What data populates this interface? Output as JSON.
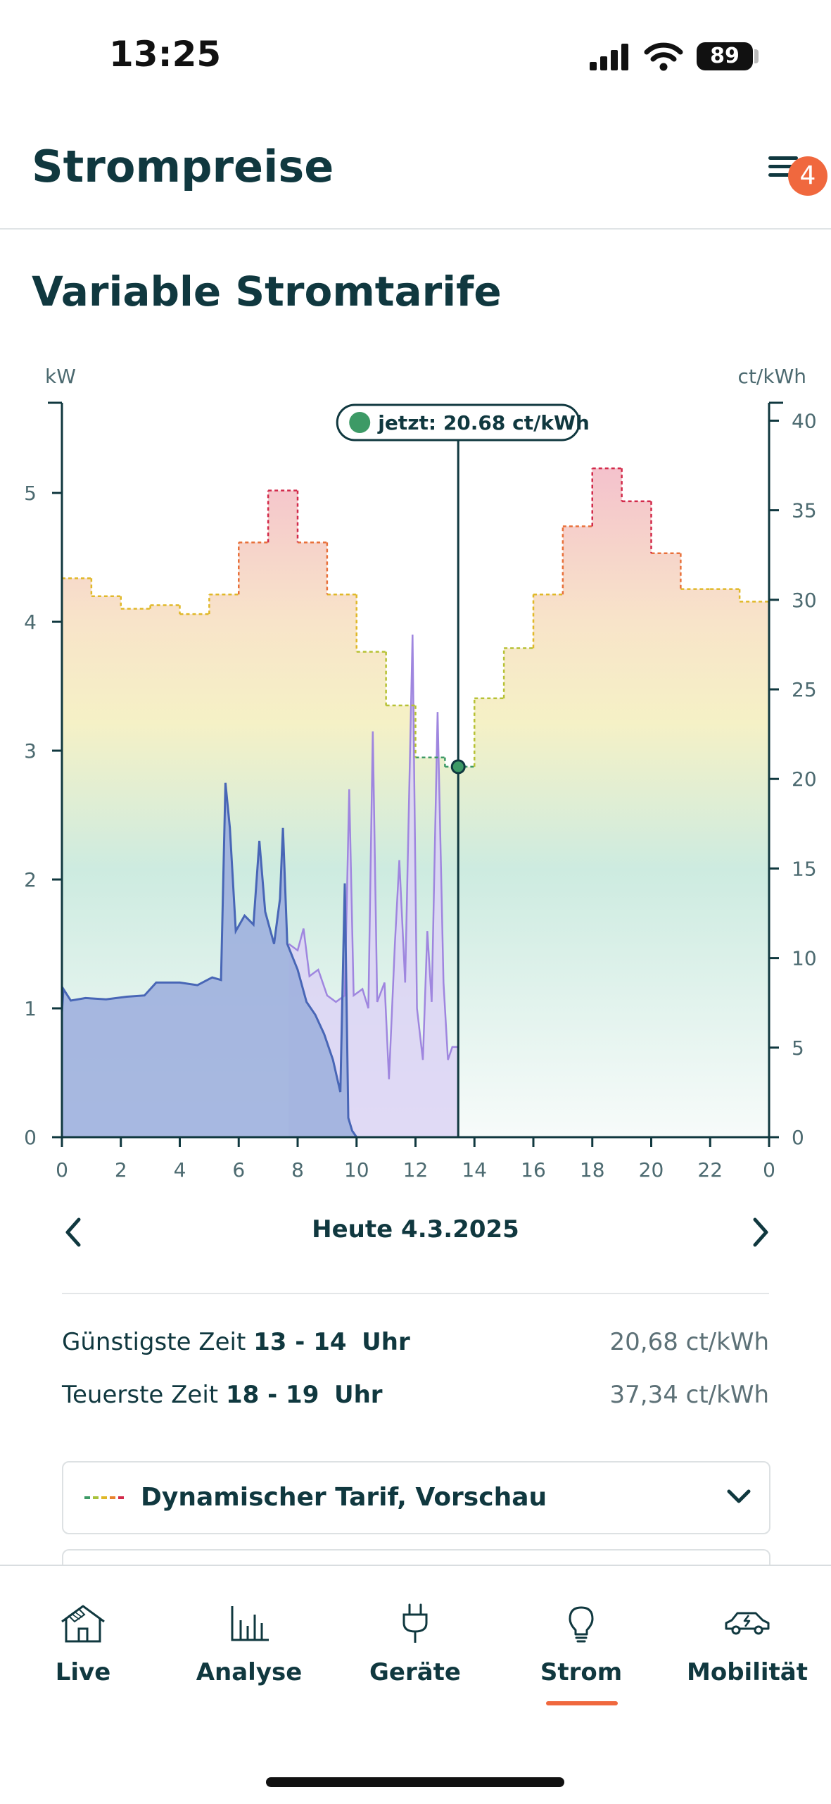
{
  "status_bar": {
    "time": "13:25",
    "battery": "89"
  },
  "header": {
    "title": "Strompreise",
    "menu_badge": "4"
  },
  "section": {
    "title": "Variable Stromtarife"
  },
  "chart_data": {
    "type": "area",
    "left_axis_label": "kW",
    "right_axis_label": "ct/kWh",
    "left_ticks": [
      "0",
      "1",
      "2",
      "3",
      "4",
      "5"
    ],
    "right_ticks": [
      "0",
      "5",
      "10",
      "15",
      "20",
      "25",
      "30",
      "35",
      "40"
    ],
    "x_ticks": [
      "0",
      "2",
      "4",
      "6",
      "8",
      "10",
      "12",
      "14",
      "16",
      "18",
      "20",
      "22",
      "0"
    ],
    "ylim_left": [
      0,
      5.7
    ],
    "ylim_right": [
      0,
      41
    ],
    "xlim": [
      0,
      24
    ],
    "tooltip": "jetzt: 20.68 ct/kWh",
    "now_hour": 13.45,
    "now_price": 20.68,
    "colors": {
      "production": "#4866b6",
      "consumption": "#9f86df",
      "cheap": "#3d9a66",
      "expensive": "#d22a4a"
    },
    "price_series": {
      "name": "Dynamischer Tarif, Vorschau",
      "hours": [
        0,
        1,
        2,
        3,
        4,
        5,
        6,
        7,
        8,
        9,
        10,
        11,
        12,
        13,
        14,
        15,
        16,
        17,
        18,
        19,
        20,
        21,
        22,
        23
      ],
      "values": [
        31.2,
        30.2,
        29.5,
        29.7,
        29.2,
        30.3,
        33.2,
        36.1,
        33.2,
        30.3,
        27.1,
        24.1,
        21.2,
        20.68,
        24.5,
        27.3,
        30.3,
        34.1,
        37.34,
        35.5,
        32.6,
        30.6,
        30.6,
        29.9
      ]
    },
    "production_series": {
      "points": [
        [
          0,
          0.97
        ],
        [
          0.05,
          1.15
        ],
        [
          0.3,
          1.06
        ],
        [
          0.8,
          1.08
        ],
        [
          1.5,
          1.07
        ],
        [
          2.2,
          1.09
        ],
        [
          2.8,
          1.1
        ],
        [
          3.2,
          1.2
        ],
        [
          4,
          1.2
        ],
        [
          4.6,
          1.18
        ],
        [
          5.1,
          1.24
        ],
        [
          5.4,
          1.22
        ],
        [
          5.55,
          2.75
        ],
        [
          5.7,
          2.4
        ],
        [
          5.9,
          1.6
        ],
        [
          6.2,
          1.72
        ],
        [
          6.5,
          1.65
        ],
        [
          6.7,
          2.3
        ],
        [
          6.9,
          1.75
        ],
        [
          7.2,
          1.5
        ],
        [
          7.4,
          1.85
        ],
        [
          7.5,
          2.4
        ],
        [
          7.65,
          1.5
        ],
        [
          8,
          1.3
        ],
        [
          8.3,
          1.05
        ],
        [
          8.6,
          0.95
        ],
        [
          8.9,
          0.8
        ],
        [
          9.2,
          0.6
        ],
        [
          9.45,
          0.35
        ],
        [
          9.6,
          1.97
        ],
        [
          9.72,
          0.15
        ],
        [
          9.85,
          0.05
        ],
        [
          10,
          0
        ]
      ]
    },
    "consumption_series": {
      "points": [
        [
          7.7,
          1.5
        ],
        [
          8.0,
          1.45
        ],
        [
          8.2,
          1.62
        ],
        [
          8.4,
          1.25
        ],
        [
          8.7,
          1.3
        ],
        [
          9.0,
          1.1
        ],
        [
          9.3,
          1.05
        ],
        [
          9.6,
          1.1
        ],
        [
          9.75,
          2.7
        ],
        [
          9.9,
          1.1
        ],
        [
          10.2,
          1.15
        ],
        [
          10.4,
          1.0
        ],
        [
          10.55,
          3.15
        ],
        [
          10.7,
          1.05
        ],
        [
          10.95,
          1.2
        ],
        [
          11.1,
          0.45
        ],
        [
          11.3,
          1.5
        ],
        [
          11.45,
          2.15
        ],
        [
          11.65,
          1.2
        ],
        [
          11.9,
          3.9
        ],
        [
          12.05,
          1.0
        ],
        [
          12.25,
          0.6
        ],
        [
          12.4,
          1.6
        ],
        [
          12.55,
          1.05
        ],
        [
          12.75,
          3.3
        ],
        [
          12.95,
          1.2
        ],
        [
          13.1,
          0.6
        ],
        [
          13.25,
          0.7
        ],
        [
          13.45,
          0.7
        ]
      ]
    }
  },
  "date_nav": {
    "label": "Heute 4.3.2025"
  },
  "info": {
    "cheapest_prefix": "Günstigste Zeit",
    "cheapest_time": "13 - 14",
    "cheapest_unit": "Uhr",
    "cheapest_price": "20,68 ct/kWh",
    "expensive_prefix": "Teuerste Zeit",
    "expensive_time": "18 - 19",
    "expensive_unit": "Uhr",
    "expensive_price": "37,34 ct/kWh"
  },
  "tariff_dropdown": {
    "selected": "Dynamischer Tarif, Vorschau"
  },
  "bottom_nav": {
    "items": [
      {
        "label": "Live",
        "icon": "house-solar-icon"
      },
      {
        "label": "Analyse",
        "icon": "bar-chart-icon"
      },
      {
        "label": "Geräte",
        "icon": "plug-icon"
      },
      {
        "label": "Strom",
        "icon": "lightbulb-icon"
      },
      {
        "label": "Mobilität",
        "icon": "electric-car-icon"
      }
    ],
    "active": "Strom"
  }
}
